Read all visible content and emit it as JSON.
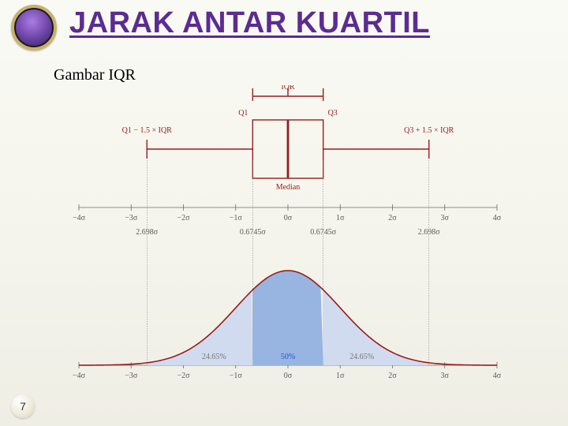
{
  "page": {
    "number": "7"
  },
  "header": {
    "title": "JARAK ANTAR KUARTIL",
    "subtitle": "Gambar IQR"
  },
  "diagram": {
    "iqr_label": "IQR",
    "q1_label": "Q1",
    "q3_label": "Q3",
    "median_label": "Median",
    "left_fence_label": "Q1 − 1.5 × IQR",
    "right_fence_label": "Q3 + 1.5 × IQR",
    "q1_sigma_label": "0.6745σ",
    "q3_sigma_label": "0.6745σ",
    "left_fence_sigma_label": "2.698σ",
    "right_fence_sigma_label": "2.698σ",
    "pct_left": "24.65%",
    "pct_mid": "50%",
    "pct_right": "24.65%",
    "sigma_positions": [
      -4,
      -3,
      -2,
      -1,
      0,
      1,
      2,
      3,
      4
    ],
    "sigma_labels": [
      "−4σ",
      "−3σ",
      "−2σ",
      "−1σ",
      "0σ",
      "1σ",
      "2σ",
      "3σ",
      "4σ"
    ],
    "q1_value": -0.6745,
    "q3_value": 0.6745,
    "left_fence_value": -2.698,
    "right_fence_value": 2.698,
    "colors": {
      "accent": "#9a1b1b",
      "axis": "#6a6a6a",
      "fill_mid": "#98b4e0",
      "fill_side": "#d0dbef",
      "percent_blue": "#2255dd",
      "title": "#5b2c91"
    }
  }
}
